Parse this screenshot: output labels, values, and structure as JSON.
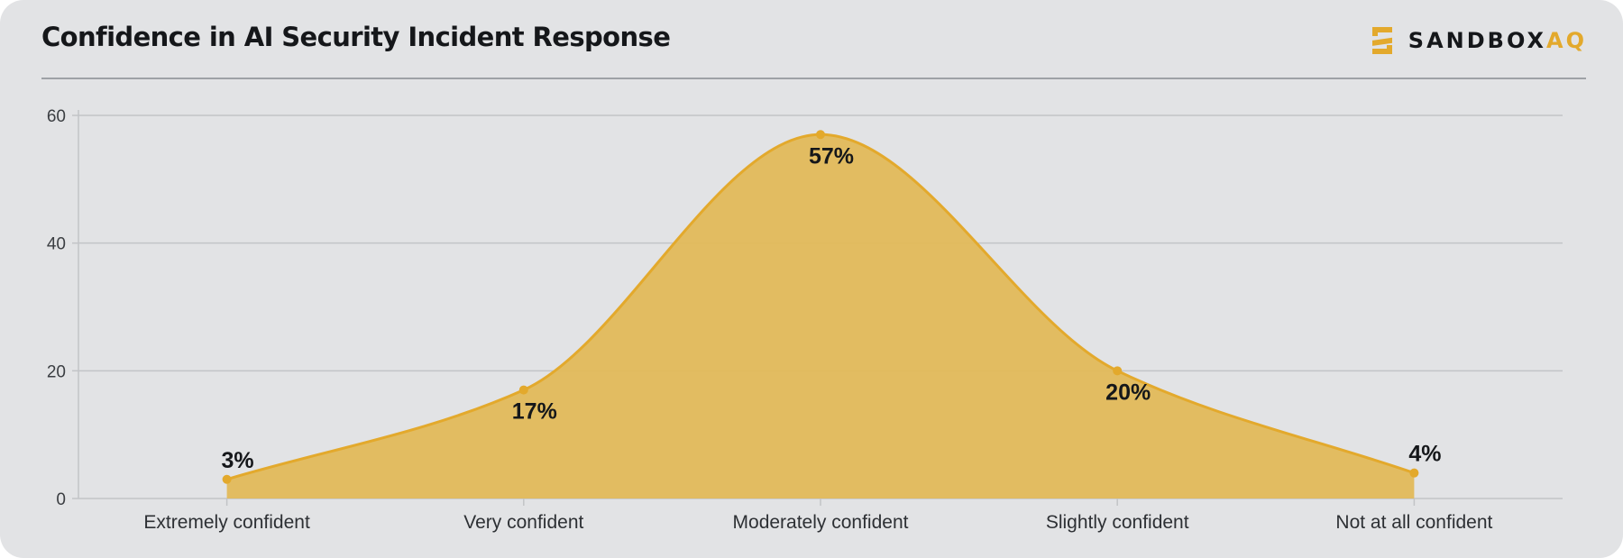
{
  "header": {
    "title": "Confidence in AI Security Incident Response",
    "logo_main": "SANDBOX",
    "logo_accent": "AQ",
    "logo_icon": "sandboxaq-logo-icon"
  },
  "colors": {
    "accent": "#e3a92c",
    "area_fill": "#e2b95a",
    "background": "#e2e3e5",
    "grid": "#c2c4c7"
  },
  "chart_data": {
    "type": "area",
    "title": "Confidence in AI Security Incident Response",
    "xlabel": "",
    "ylabel": "",
    "categories": [
      "Extremely confident",
      "Very confident",
      "Moderately confident",
      "Slightly confident",
      "Not at all confident"
    ],
    "values": [
      3,
      17,
      57,
      20,
      4
    ],
    "data_labels": [
      "3%",
      "17%",
      "57%",
      "20%",
      "4%"
    ],
    "ylim": [
      0,
      60
    ],
    "yticks": [
      0,
      20,
      40,
      60
    ],
    "grid": true,
    "smooth": true,
    "legend": "none"
  }
}
